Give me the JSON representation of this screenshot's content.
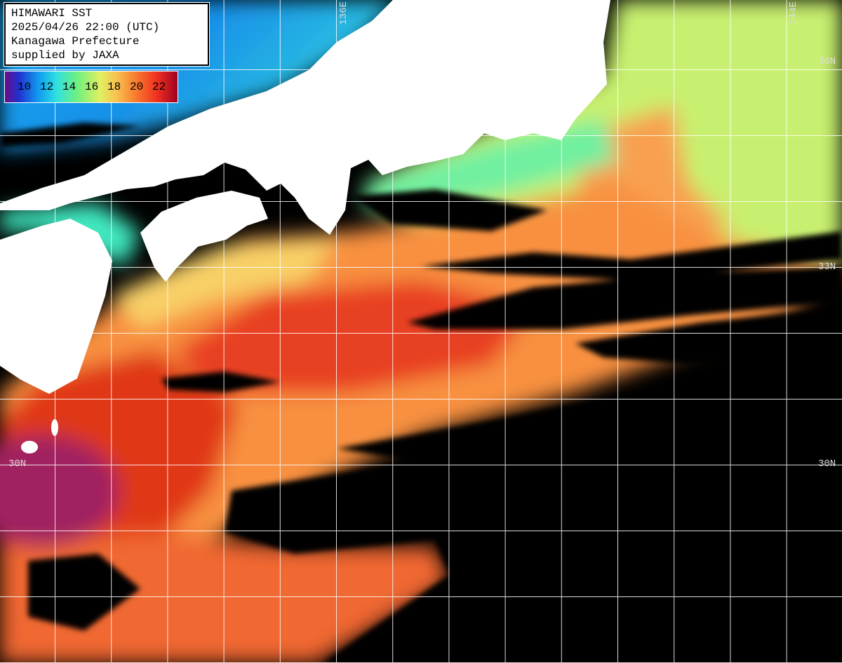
{
  "info_box": {
    "lines": [
      "HIMAWARI SST",
      "2025/04/26 22:00 (UTC)",
      "Kanagawa Prefecture",
      "supplied by JAXA"
    ]
  },
  "colorbar": {
    "labels": [
      10,
      12,
      14,
      16,
      18,
      20,
      22
    ]
  },
  "grid_labels": {
    "longitude": [
      "136E",
      "144E"
    ],
    "latitude_right": [
      "36N",
      "33N",
      "30N"
    ],
    "latitude_left": [
      "30N"
    ]
  }
}
